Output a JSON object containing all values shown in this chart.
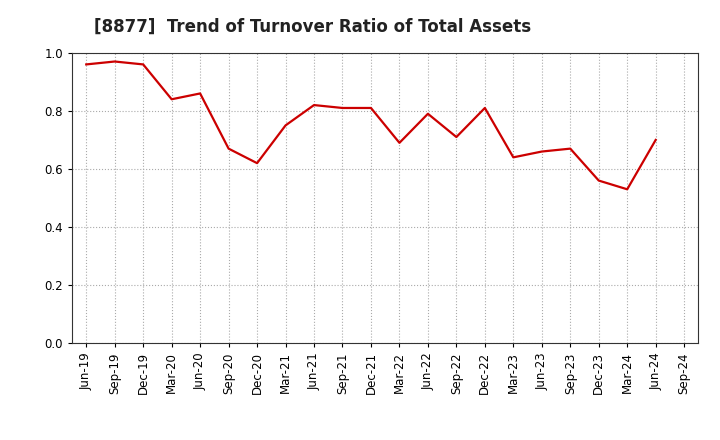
{
  "title": "[8877]  Trend of Turnover Ratio of Total Assets",
  "labels": [
    "Jun-19",
    "Sep-19",
    "Dec-19",
    "Mar-20",
    "Jun-20",
    "Sep-20",
    "Dec-20",
    "Mar-21",
    "Jun-21",
    "Sep-21",
    "Dec-21",
    "Mar-22",
    "Jun-22",
    "Sep-22",
    "Dec-22",
    "Mar-23",
    "Jun-23",
    "Sep-23",
    "Dec-23",
    "Mar-24",
    "Jun-24",
    "Sep-24"
  ],
  "values": [
    0.96,
    0.97,
    0.96,
    0.84,
    0.86,
    0.67,
    0.62,
    0.75,
    0.82,
    0.81,
    0.81,
    0.69,
    0.79,
    0.71,
    0.81,
    0.64,
    0.66,
    0.67,
    0.56,
    0.53,
    0.7,
    null
  ],
  "line_color": "#cc0000",
  "line_width": 1.6,
  "ylim": [
    0.0,
    1.0
  ],
  "yticks": [
    0.0,
    0.2,
    0.4,
    0.6,
    0.8,
    1.0
  ],
  "grid_color": "#aaaaaa",
  "title_fontsize": 12,
  "tick_fontsize": 8.5,
  "bg_color": "#ffffff",
  "plot_bg_color": "#ffffff"
}
